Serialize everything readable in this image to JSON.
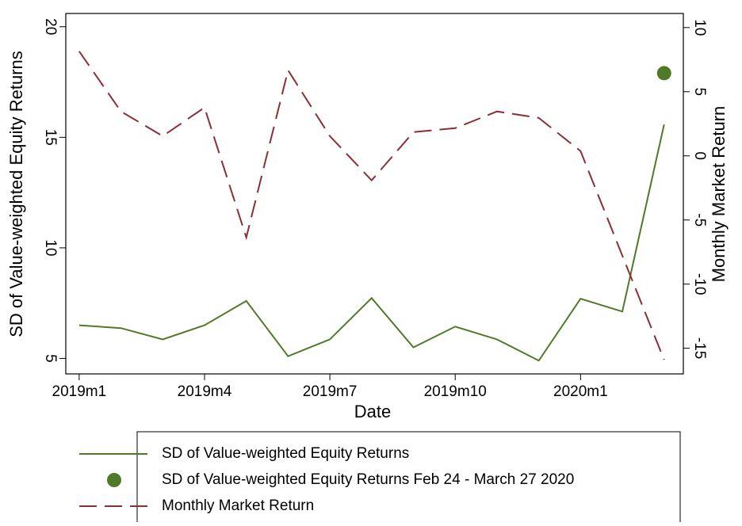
{
  "chart_data": {
    "type": "line",
    "categories": [
      "2019m1",
      null,
      null,
      "2019m4",
      null,
      null,
      "2019m7",
      null,
      null,
      "2019m10",
      null,
      null,
      "2020m1",
      null,
      null
    ],
    "xlabel": "Date",
    "ylabel": "SD of Value-weighted Equity Returns",
    "y2label": "Monthly Market Return",
    "ylim": [
      4.3,
      20.6
    ],
    "yticks": [
      5,
      10,
      15,
      20
    ],
    "y2lim": [
      -17,
      11.1
    ],
    "y2ticks": [
      -15,
      -10,
      -5,
      0,
      5,
      10
    ],
    "series": [
      {
        "name": "SD of Value-weighted Equity Returns",
        "type": "line",
        "color": "#4f7a28",
        "values": [
          6.5,
          6.37,
          5.86,
          6.5,
          7.6,
          5.1,
          5.86,
          7.73,
          5.5,
          6.44,
          5.86,
          4.9,
          7.7,
          7.12,
          15.58
        ]
      },
      {
        "name": "SD of Value-weighted Equity Returns Feb 24 - March 27 2020",
        "type": "scatter",
        "color": "#4f7a28",
        "values": [
          null,
          null,
          null,
          null,
          null,
          null,
          null,
          null,
          null,
          null,
          null,
          null,
          null,
          null,
          17.9
        ]
      },
      {
        "name": "Monthly Market Return",
        "type": "line",
        "dashed": true,
        "axis": "y2",
        "color": "#8c2f35",
        "values": [
          8.15,
          3.46,
          1.54,
          3.77,
          -6.36,
          6.67,
          1.54,
          -1.91,
          1.85,
          2.16,
          3.46,
          2.96,
          0.37,
          -7.78,
          -15.9
        ]
      }
    ]
  }
}
